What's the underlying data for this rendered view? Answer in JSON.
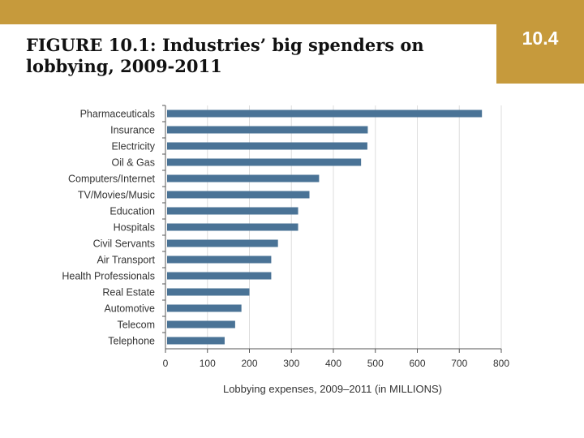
{
  "slide": {
    "title": "FIGURE 10.1: Industries’ big spenders on lobbying, 2009-2011",
    "section_number": "10.4",
    "accent_color": "#c69a3c"
  },
  "chart_data": {
    "type": "bar",
    "orientation": "horizontal",
    "categories": [
      "Pharmaceuticals",
      "Insurance",
      "Electricity",
      "Oil & Gas",
      "Computers/Internet",
      "TV/Movies/Music",
      "Education",
      "Hospitals",
      "Civil Servants",
      "Air Transport",
      "Health Professionals",
      "Real Estate",
      "Automotive",
      "Telecom",
      "Telephone"
    ],
    "values": [
      754,
      482,
      481,
      466,
      366,
      343,
      316,
      316,
      268,
      252,
      252,
      200,
      181,
      166,
      141
    ],
    "xlabel": "Lobbying expenses, 2009–2011 (in MILLIONS)",
    "ylabel": "",
    "xlim": [
      0,
      800
    ],
    "xticks": [
      0,
      100,
      200,
      300,
      400,
      500,
      600,
      700,
      800
    ],
    "grid": true,
    "bar_color": "#4a7396"
  }
}
